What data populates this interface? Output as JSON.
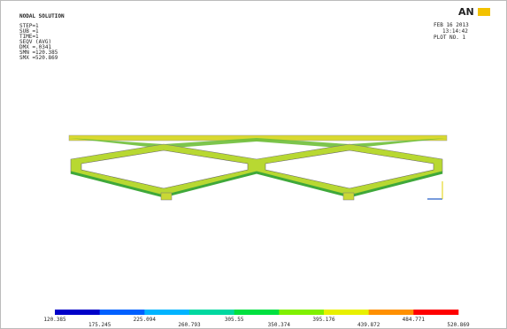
{
  "info": {
    "title": "NODAL SOLUTION",
    "lines": [
      "STEP=1",
      "SUB =1",
      "TIME=1",
      "SEQV     (AVG)",
      "DMX =.0341",
      "SMN =120.385",
      "SMX =520.869"
    ]
  },
  "stamp": {
    "logo": "AN",
    "date": "FEB 16 2013",
    "time": "13:14:42",
    "plot": "PLOT NO.   1"
  },
  "legend": {
    "labels": [
      "120.385",
      "175.245",
      "225.094",
      "260.793",
      "305.55",
      "350.374",
      "395.176",
      "439.872",
      "484.771",
      "520.869"
    ]
  }
}
